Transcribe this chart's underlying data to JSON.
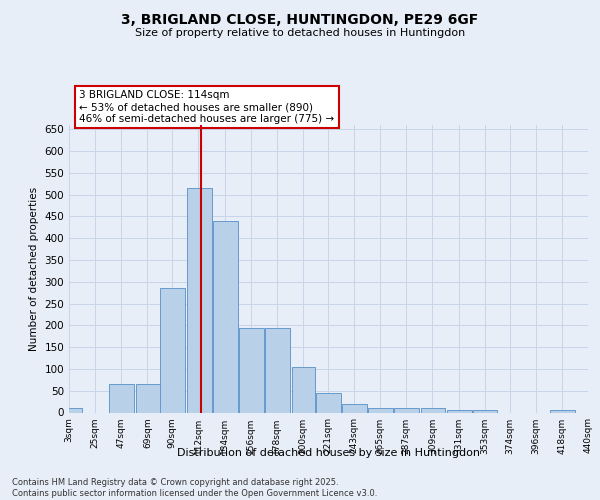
{
  "title_line1": "3, BRIGLAND CLOSE, HUNTINGDON, PE29 6GF",
  "title_line2": "Size of property relative to detached houses in Huntingdon",
  "xlabel": "Distribution of detached houses by size in Huntingdon",
  "ylabel": "Number of detached properties",
  "annotation_title": "3 BRIGLAND CLOSE: 114sqm",
  "annotation_line2": "← 53% of detached houses are smaller (890)",
  "annotation_line3": "46% of semi-detached houses are larger (775) →",
  "property_size": 114,
  "footer_line1": "Contains HM Land Registry data © Crown copyright and database right 2025.",
  "footer_line2": "Contains public sector information licensed under the Open Government Licence v3.0.",
  "bar_color": "#b8d0e8",
  "bar_edge_color": "#6699cc",
  "vline_color": "#cc0000",
  "background_color": "#e8eef8",
  "grid_color": "#c8d4e8",
  "annotation_box_color": "#ffffff",
  "annotation_box_edge": "#cc0000",
  "bins": [
    3,
    25,
    47,
    69,
    90,
    112,
    134,
    156,
    178,
    200,
    221,
    243,
    265,
    287,
    309,
    331,
    353,
    374,
    396,
    418,
    440
  ],
  "counts": [
    10,
    0,
    65,
    65,
    285,
    515,
    440,
    195,
    195,
    105,
    45,
    20,
    10,
    10,
    10,
    5,
    5,
    0,
    0,
    5
  ],
  "ylim": [
    0,
    660
  ],
  "yticks": [
    0,
    50,
    100,
    150,
    200,
    250,
    300,
    350,
    400,
    450,
    500,
    550,
    600,
    650
  ]
}
